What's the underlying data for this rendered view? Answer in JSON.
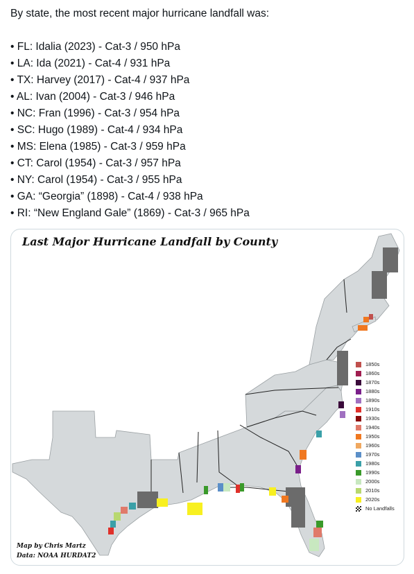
{
  "post": {
    "intro": "By state, the most recent major hurricane landfall was:",
    "items": [
      "• FL: Idalia (2023) - Cat-3 / 950 hPa",
      "• LA: Ida (2021) - Cat-4 / 931 hPa",
      "• TX: Harvey (2017) - Cat-4 / 937 hPa",
      "• AL: Ivan (2004) - Cat-3 / 946 hPa",
      "• NC: Fran (1996) - Cat-3 / 954 hPa",
      "• SC: Hugo (1989) - Cat-4 / 934 hPa",
      "• MS: Elena (1985) - Cat-3 / 959 hPa",
      "• CT: Carol (1954) - Cat-3 / 957 hPa",
      "• NY: Carol (1954) - Cat-3 / 955 hPa",
      "• GA: “Georgia” (1898) - Cat-4 / 938 hPa",
      "• RI: “New England Gale” (1869) - Cat-3 / 965 hPa"
    ]
  },
  "map": {
    "title": "Last Major Hurricane Landfall by County",
    "credit_author": "Map by Chris Martz",
    "credit_data": "Data: NOAA HURDAT2",
    "land_color": "#d5d9db",
    "no_landfall_color": "#6b6b6b",
    "legend": [
      {
        "label": "1850s",
        "color": "#c0504d"
      },
      {
        "label": "1860s",
        "color": "#a01e50"
      },
      {
        "label": "1870s",
        "color": "#3a0a3a"
      },
      {
        "label": "1880s",
        "color": "#7a1f8a"
      },
      {
        "label": "1890s",
        "color": "#a070c0"
      },
      {
        "label": "1910s",
        "color": "#e0302a"
      },
      {
        "label": "1930s",
        "color": "#8a0a0a"
      },
      {
        "label": "1940s",
        "color": "#e07a6a"
      },
      {
        "label": "1950s",
        "color": "#f07820"
      },
      {
        "label": "1960s",
        "color": "#f0a860"
      },
      {
        "label": "1970s",
        "color": "#5b8fc8"
      },
      {
        "label": "1980s",
        "color": "#3aa0a8"
      },
      {
        "label": "1990s",
        "color": "#3a9a2a"
      },
      {
        "label": "2000s",
        "color": "#c8e8c0"
      },
      {
        "label": "2010s",
        "color": "#b8d870"
      },
      {
        "label": "2020s",
        "color": "#f8f020"
      },
      {
        "label": "No Landfalls",
        "color": "checker"
      }
    ]
  }
}
